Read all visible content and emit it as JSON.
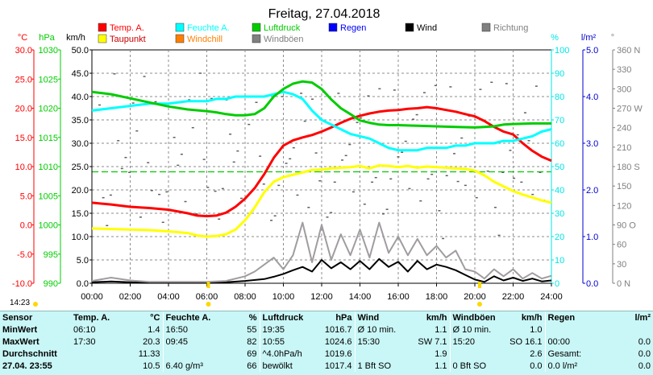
{
  "chart_data": {
    "type": "line",
    "title": "Freitag, 27.04.2018",
    "x_ticks": [
      "00:00",
      "02:00",
      "04:00",
      "06:00",
      "08:00",
      "10:00",
      "12:00",
      "14:00",
      "16:00",
      "18:00",
      "20:00",
      "22:00",
      "24:00"
    ],
    "axes": {
      "temp": {
        "unit": "°C",
        "ticks": [
          "30.0",
          "25.0",
          "20.0",
          "15.0",
          "10.0",
          "5.0",
          "0.0",
          "-5.0",
          "-10.0"
        ],
        "ylim": [
          -10,
          30
        ],
        "color": "#ff0000"
      },
      "pressure": {
        "unit": "hPa",
        "ticks": [
          "1030",
          "1025",
          "1020",
          "1015",
          "1010",
          "1005",
          "1000",
          "995",
          "990"
        ],
        "ylim": [
          990,
          1030
        ],
        "color": "#00cc00"
      },
      "wind": {
        "unit": "km/h",
        "ticks": [
          "50.0",
          "45.0",
          "40.0",
          "35.0",
          "30.0",
          "25.0",
          "20.0",
          "15.0",
          "10.0",
          "5.0",
          "0.0"
        ],
        "ylim": [
          0,
          50
        ],
        "color": "#000000"
      },
      "humidity": {
        "unit": "%",
        "ticks": [
          "100",
          "90",
          "80",
          "70",
          "60",
          "50",
          "40",
          "30",
          "20",
          "10",
          "0"
        ],
        "ylim": [
          0,
          100
        ],
        "color": "#00e5e5"
      },
      "rain": {
        "unit": "l/m²",
        "ticks": [
          "5.0",
          "4.0",
          "3.0",
          "2.0",
          "1.0",
          "0.0"
        ],
        "ylim": [
          0,
          5
        ],
        "color": "#0000cc"
      },
      "direction": {
        "unit": "°",
        "ticks": [
          "360 N",
          "330",
          "300",
          "270 W",
          "240",
          "210",
          "180 S",
          "150",
          "120",
          "90 O",
          "60",
          "30",
          "0 N"
        ],
        "ylim": [
          0,
          360
        ],
        "color": "#808080"
      }
    },
    "legend": [
      {
        "name": "Temp. A.",
        "color": "#ff0000"
      },
      {
        "name": "Feuchte A.",
        "color": "#00ffff"
      },
      {
        "name": "Luftdruck",
        "color": "#00cc00"
      },
      {
        "name": "Regen",
        "color": "#0000ff"
      },
      {
        "name": "Wind",
        "color": "#000000"
      },
      {
        "name": "Richtung",
        "color": "#808080"
      },
      {
        "name": "Taupunkt",
        "color": "#ffff00"
      },
      {
        "name": "Windchill",
        "color": "#ff8000"
      },
      {
        "name": "Windböen",
        "color": "#808080"
      }
    ],
    "series": [
      {
        "name": "Temp. A.",
        "axis": "temp",
        "color": "#ff0000",
        "x": [
          0,
          1,
          2,
          3,
          4,
          5,
          5.5,
          6,
          6.5,
          7,
          7.5,
          8,
          8.5,
          9,
          9.5,
          10,
          10.5,
          11,
          11.5,
          12,
          12.5,
          13,
          13.5,
          14,
          14.5,
          15,
          15.5,
          16,
          16.5,
          17,
          17.5,
          18,
          18.5,
          19,
          19.5,
          20,
          20.5,
          21,
          21.5,
          22,
          22.5,
          23,
          23.5,
          24
        ],
        "y": [
          3.8,
          3.5,
          3.1,
          2.9,
          2.6,
          2.0,
          1.6,
          1.5,
          1.6,
          2.1,
          3.1,
          4.5,
          6.3,
          8.7,
          11.5,
          13.6,
          14.5,
          15.0,
          15.4,
          16.0,
          16.7,
          17.5,
          18.2,
          18.7,
          19.1,
          19.4,
          19.6,
          19.7,
          19.9,
          20.0,
          20.2,
          20.0,
          19.7,
          19.4,
          19.0,
          18.6,
          17.8,
          16.8,
          16.0,
          15.5,
          14.0,
          12.7,
          11.7,
          11.0
        ]
      },
      {
        "name": "Taupunkt",
        "axis": "temp",
        "color": "#ffff00",
        "x": [
          0,
          1,
          2,
          3,
          4,
          5,
          5.5,
          6,
          6.5,
          7,
          7.5,
          8,
          8.5,
          9,
          9.5,
          10,
          10.5,
          11,
          11.5,
          12,
          12.5,
          13,
          13.5,
          14,
          14.5,
          15,
          15.5,
          16,
          16.5,
          17,
          17.5,
          18,
          18.5,
          19,
          19.5,
          20,
          20.5,
          21,
          21.5,
          22,
          22.5,
          23,
          23.5,
          24
        ],
        "y": [
          -0.6,
          -0.7,
          -0.8,
          -0.9,
          -1.1,
          -1.4,
          -1.8,
          -2.0,
          -1.9,
          -1.6,
          -0.8,
          0.8,
          3.0,
          5.6,
          7.4,
          8.2,
          8.6,
          9.0,
          9.4,
          9.5,
          9.7,
          9.8,
          9.9,
          10.1,
          9.7,
          10.2,
          10.1,
          9.9,
          10.1,
          9.8,
          10.0,
          9.9,
          9.8,
          9.7,
          9.6,
          9.3,
          8.5,
          7.4,
          6.6,
          5.8,
          5.2,
          4.7,
          4.2,
          3.8
        ]
      },
      {
        "name": "Feuchte A.",
        "axis": "humidity",
        "color": "#00ffff",
        "x": [
          0,
          1,
          2,
          3,
          4,
          5,
          6,
          6.5,
          7,
          7.5,
          8,
          8.5,
          9,
          9.5,
          10,
          10.5,
          11,
          11.5,
          12,
          12.5,
          13,
          13.5,
          14,
          14.5,
          15,
          15.5,
          16,
          16.5,
          17,
          17.5,
          18,
          18.5,
          19,
          19.5,
          20,
          20.5,
          21,
          21.5,
          22,
          22.5,
          23,
          23.5,
          24
        ],
        "y": [
          74,
          75,
          76,
          77,
          77,
          78,
          78,
          79,
          79,
          80,
          80,
          80,
          80,
          81,
          82,
          81,
          79,
          74,
          70,
          68,
          66,
          64,
          63,
          62,
          60,
          58,
          57,
          57,
          57,
          58,
          58,
          58,
          59,
          59,
          60,
          60,
          60,
          61,
          61,
          62,
          63,
          65,
          66
        ]
      },
      {
        "name": "Luftdruck",
        "axis": "pressure",
        "color": "#00cc00",
        "x": [
          0,
          1,
          2,
          3,
          4,
          5,
          6,
          6.5,
          7,
          7.5,
          8,
          8.5,
          9,
          9.5,
          10,
          10.5,
          11,
          11.5,
          12,
          12.5,
          13,
          13.5,
          14,
          14.5,
          15,
          15.5,
          16,
          17,
          18,
          19,
          20,
          20.5,
          21,
          21.5,
          22,
          23,
          24
        ],
        "y": [
          1022.8,
          1022.4,
          1021.7,
          1021.0,
          1020.3,
          1019.8,
          1019.5,
          1019.3,
          1019.0,
          1018.8,
          1018.8,
          1019.0,
          1020.0,
          1022.0,
          1023.3,
          1024.2,
          1024.6,
          1024.4,
          1023.3,
          1021.5,
          1020.0,
          1019.0,
          1017.9,
          1017.5,
          1017.2,
          1017.1,
          1017.1,
          1017.0,
          1016.9,
          1016.8,
          1016.7,
          1016.8,
          1016.9,
          1017.2,
          1017.3,
          1017.4,
          1017.4
        ]
      },
      {
        "name": "Wind",
        "axis": "wind",
        "color": "#000000",
        "x": [
          0,
          1,
          2,
          3,
          4,
          5,
          6,
          7,
          8,
          9,
          9.5,
          10,
          10.5,
          11,
          11.5,
          12,
          12.5,
          13,
          13.5,
          14,
          14.5,
          15,
          15.5,
          16,
          16.5,
          17,
          17.5,
          18,
          18.5,
          19,
          19.5,
          20,
          20.5,
          21,
          21.5,
          22,
          22.5,
          23,
          23.5,
          24
        ],
        "y": [
          0.2,
          0.4,
          0.2,
          0.1,
          0.1,
          0.1,
          0.1,
          0.2,
          0.5,
          0.9,
          1.4,
          2.0,
          2.8,
          3.5,
          2.5,
          5.0,
          3.2,
          4.5,
          3.0,
          4.8,
          3.0,
          5.2,
          3.5,
          4.6,
          2.5,
          4.8,
          3.0,
          4.0,
          3.5,
          2.8,
          1.8,
          0.8,
          0.3,
          1.5,
          0.6,
          1.2,
          0.5,
          1.0,
          0.4,
          0.6
        ]
      },
      {
        "name": "Windböen",
        "axis": "wind",
        "color": "#a09ca0",
        "x": [
          0,
          1,
          2,
          3,
          4,
          5,
          6,
          7,
          8,
          8.5,
          9,
          9.5,
          10,
          10.5,
          11,
          11.5,
          12,
          12.5,
          13,
          13.5,
          14,
          14.5,
          15,
          15.5,
          16,
          16.5,
          17,
          17.5,
          18,
          18.5,
          19,
          19.5,
          20,
          20.5,
          21,
          21.5,
          22,
          22.5,
          23,
          23.5,
          24
        ],
        "y": [
          0.5,
          1.2,
          0.6,
          0.3,
          0.3,
          0.3,
          0.3,
          0.5,
          1.5,
          2.5,
          4.0,
          5.5,
          3.0,
          6.0,
          13.0,
          4.5,
          12.5,
          5.0,
          10.5,
          6.0,
          11.5,
          5.5,
          13.0,
          6.5,
          10.0,
          6.0,
          9.5,
          6.0,
          8.0,
          5.5,
          7.0,
          3.0,
          2.5,
          1.0,
          3.0,
          1.5,
          3.0,
          1.0,
          2.2,
          1.0,
          1.6
        ]
      }
    ],
    "dashed_reference": {
      "axis": "temp",
      "value": 9.1,
      "color": "#00cc00"
    },
    "direction_scatter_axis": "direction",
    "sun_markers": [
      "06:05",
      "20:15"
    ],
    "x_label_clock": "14:23"
  },
  "table": {
    "headers": [
      "Sensor",
      "Temp. A.",
      "°C",
      "Feuchte A.",
      "%",
      "Luftdruck",
      "hPa",
      "Wind",
      "km/h",
      "Windböen",
      "km/h",
      "Regen",
      "l/m²"
    ],
    "rows": [
      [
        "MinWert",
        "06:10",
        "1.4",
        "16:50",
        "55",
        "19:35",
        "1016.7",
        "Ø 10 min.",
        "1.1",
        "Ø 10 min.",
        "1.0",
        "",
        ""
      ],
      [
        "MaxWert",
        "17:30",
        "20.3",
        "09:45",
        "82",
        "10:55",
        "1024.6",
        "15:30",
        "SW 7.1",
        "15:20",
        "SO 16.1",
        "00:00",
        "0.0"
      ],
      [
        "Durchschnitt",
        "",
        "11.33",
        "",
        "69",
        "^4.0hPa/h",
        "1019.6",
        "",
        "1.9",
        "",
        "2.6",
        "Gesamt:",
        "0.0"
      ],
      [
        "27.04. 23:55",
        "",
        "10.5",
        "6.40 g/m³",
        "66",
        "bewölkt",
        "1017.4",
        "1 Bft SO",
        "1.1",
        "0 Bft SO",
        "0.0",
        "0.0 l/m²",
        "0.0"
      ]
    ]
  }
}
